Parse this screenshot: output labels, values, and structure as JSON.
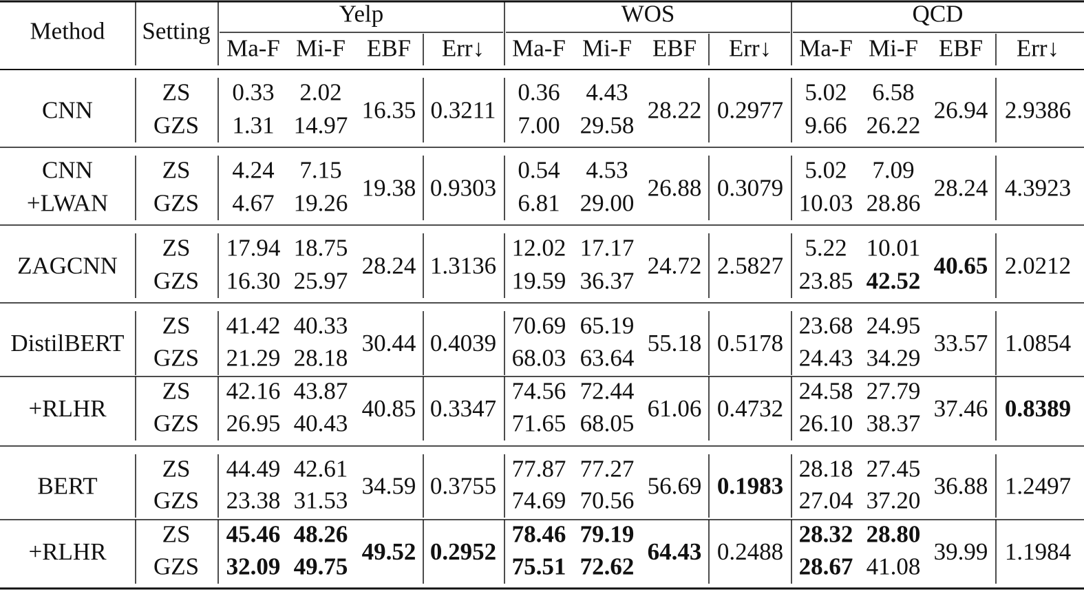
{
  "header": {
    "method": "Method",
    "setting": "Setting",
    "datasets": [
      "Yelp",
      "WOS",
      "QCD"
    ],
    "metrics": [
      "Ma-F",
      "Mi-F",
      "EBF",
      "Err↓"
    ]
  },
  "table": {
    "rows": [
      {
        "method": [
          "CNN"
        ],
        "settings": [
          "ZS",
          "GZS"
        ],
        "results": [
          {
            "zs": [
              "0.33",
              "2.02"
            ],
            "gzs": [
              "1.31",
              "14.97"
            ],
            "ebf": "16.35",
            "err": "0.3211"
          },
          {
            "zs": [
              "0.36",
              "4.43"
            ],
            "gzs": [
              "7.00",
              "29.58"
            ],
            "ebf": "28.22",
            "err": "0.2977"
          },
          {
            "zs": [
              "5.02",
              "6.58"
            ],
            "gzs": [
              "9.66",
              "26.22"
            ],
            "ebf": "26.94",
            "err": "2.9386"
          }
        ]
      },
      {
        "method": [
          "CNN",
          "+LWAN"
        ],
        "settings": [
          "ZS",
          "GZS"
        ],
        "results": [
          {
            "zs": [
              "4.24",
              "7.15"
            ],
            "gzs": [
              "4.67",
              "19.26"
            ],
            "ebf": "19.38",
            "err": "0.9303"
          },
          {
            "zs": [
              "0.54",
              "4.53"
            ],
            "gzs": [
              "6.81",
              "29.00"
            ],
            "ebf": "26.88",
            "err": "0.3079"
          },
          {
            "zs": [
              "5.02",
              "7.09"
            ],
            "gzs": [
              "10.03",
              "28.86"
            ],
            "ebf": "28.24",
            "err": "4.3923"
          }
        ]
      },
      {
        "method": [
          "ZAGCNN"
        ],
        "settings": [
          "ZS",
          "GZS"
        ],
        "results": [
          {
            "zs": [
              "17.94",
              "18.75"
            ],
            "gzs": [
              "16.30",
              "25.97"
            ],
            "ebf": "28.24",
            "err": "1.3136"
          },
          {
            "zs": [
              "12.02",
              "17.17"
            ],
            "gzs": [
              "19.59",
              "36.37"
            ],
            "ebf": "24.72",
            "err": "2.5827"
          },
          {
            "zs": [
              "5.22",
              "10.01"
            ],
            "gzs": [
              "23.85",
              {
                "text": "42.52",
                "bold": true
              }
            ],
            "ebf": {
              "text": "40.65",
              "bold": true
            },
            "err": "2.0212"
          }
        ]
      },
      {
        "method": [
          "DistilBERT"
        ],
        "settings": [
          "ZS",
          "GZS"
        ],
        "results": [
          {
            "zs": [
              "41.42",
              "40.33"
            ],
            "gzs": [
              "21.29",
              "28.18"
            ],
            "ebf": "30.44",
            "err": "0.4039"
          },
          {
            "zs": [
              "70.69",
              "65.19"
            ],
            "gzs": [
              "68.03",
              "63.64"
            ],
            "ebf": "55.18",
            "err": "0.5178"
          },
          {
            "zs": [
              "23.68",
              "24.95"
            ],
            "gzs": [
              "24.43",
              "34.29"
            ],
            "ebf": "33.57",
            "err": "1.0854"
          }
        ]
      },
      {
        "method": [
          "+RLHR"
        ],
        "settings": [
          "ZS",
          "GZS"
        ],
        "results": [
          {
            "zs": [
              "42.16",
              "43.87"
            ],
            "gzs": [
              "26.95",
              "40.43"
            ],
            "ebf": "40.85",
            "err": "0.3347"
          },
          {
            "zs": [
              "74.56",
              "72.44"
            ],
            "gzs": [
              "71.65",
              "68.05"
            ],
            "ebf": "61.06",
            "err": "0.4732"
          },
          {
            "zs": [
              "24.58",
              "27.79"
            ],
            "gzs": [
              "26.10",
              "38.37"
            ],
            "ebf": "37.46",
            "err": {
              "text": "0.8389",
              "bold": true
            }
          }
        ]
      },
      {
        "method": [
          "BERT"
        ],
        "settings": [
          "ZS",
          "GZS"
        ],
        "results": [
          {
            "zs": [
              "44.49",
              "42.61"
            ],
            "gzs": [
              "23.38",
              "31.53"
            ],
            "ebf": "34.59",
            "err": "0.3755"
          },
          {
            "zs": [
              "77.87",
              "77.27"
            ],
            "gzs": [
              "74.69",
              "70.56"
            ],
            "ebf": "56.69",
            "err": {
              "text": "0.1983",
              "bold": true
            }
          },
          {
            "zs": [
              "28.18",
              "27.45"
            ],
            "gzs": [
              "27.04",
              "37.20"
            ],
            "ebf": "36.88",
            "err": "1.2497"
          }
        ]
      },
      {
        "method": [
          "+RLHR"
        ],
        "settings": [
          "ZS",
          "GZS"
        ],
        "results": [
          {
            "zs": [
              {
                "text": "45.46",
                "bold": true
              },
              {
                "text": "48.26",
                "bold": true
              }
            ],
            "gzs": [
              {
                "text": "32.09",
                "bold": true
              },
              {
                "text": "49.75",
                "bold": true
              }
            ],
            "ebf": {
              "text": "49.52",
              "bold": true
            },
            "err": {
              "text": "0.2952",
              "bold": true
            }
          },
          {
            "zs": [
              {
                "text": "78.46",
                "bold": true
              },
              {
                "text": "79.19",
                "bold": true
              }
            ],
            "gzs": [
              {
                "text": "75.51",
                "bold": true
              },
              {
                "text": "72.62",
                "bold": true
              }
            ],
            "ebf": {
              "text": "64.43",
              "bold": true
            },
            "err": "0.2488"
          },
          {
            "zs": [
              {
                "text": "28.32",
                "bold": true
              },
              {
                "text": "28.80",
                "bold": true
              }
            ],
            "gzs": [
              {
                "text": "28.67",
                "bold": true
              },
              "41.08"
            ],
            "ebf": "39.99",
            "err": "1.1984"
          }
        ]
      }
    ]
  }
}
